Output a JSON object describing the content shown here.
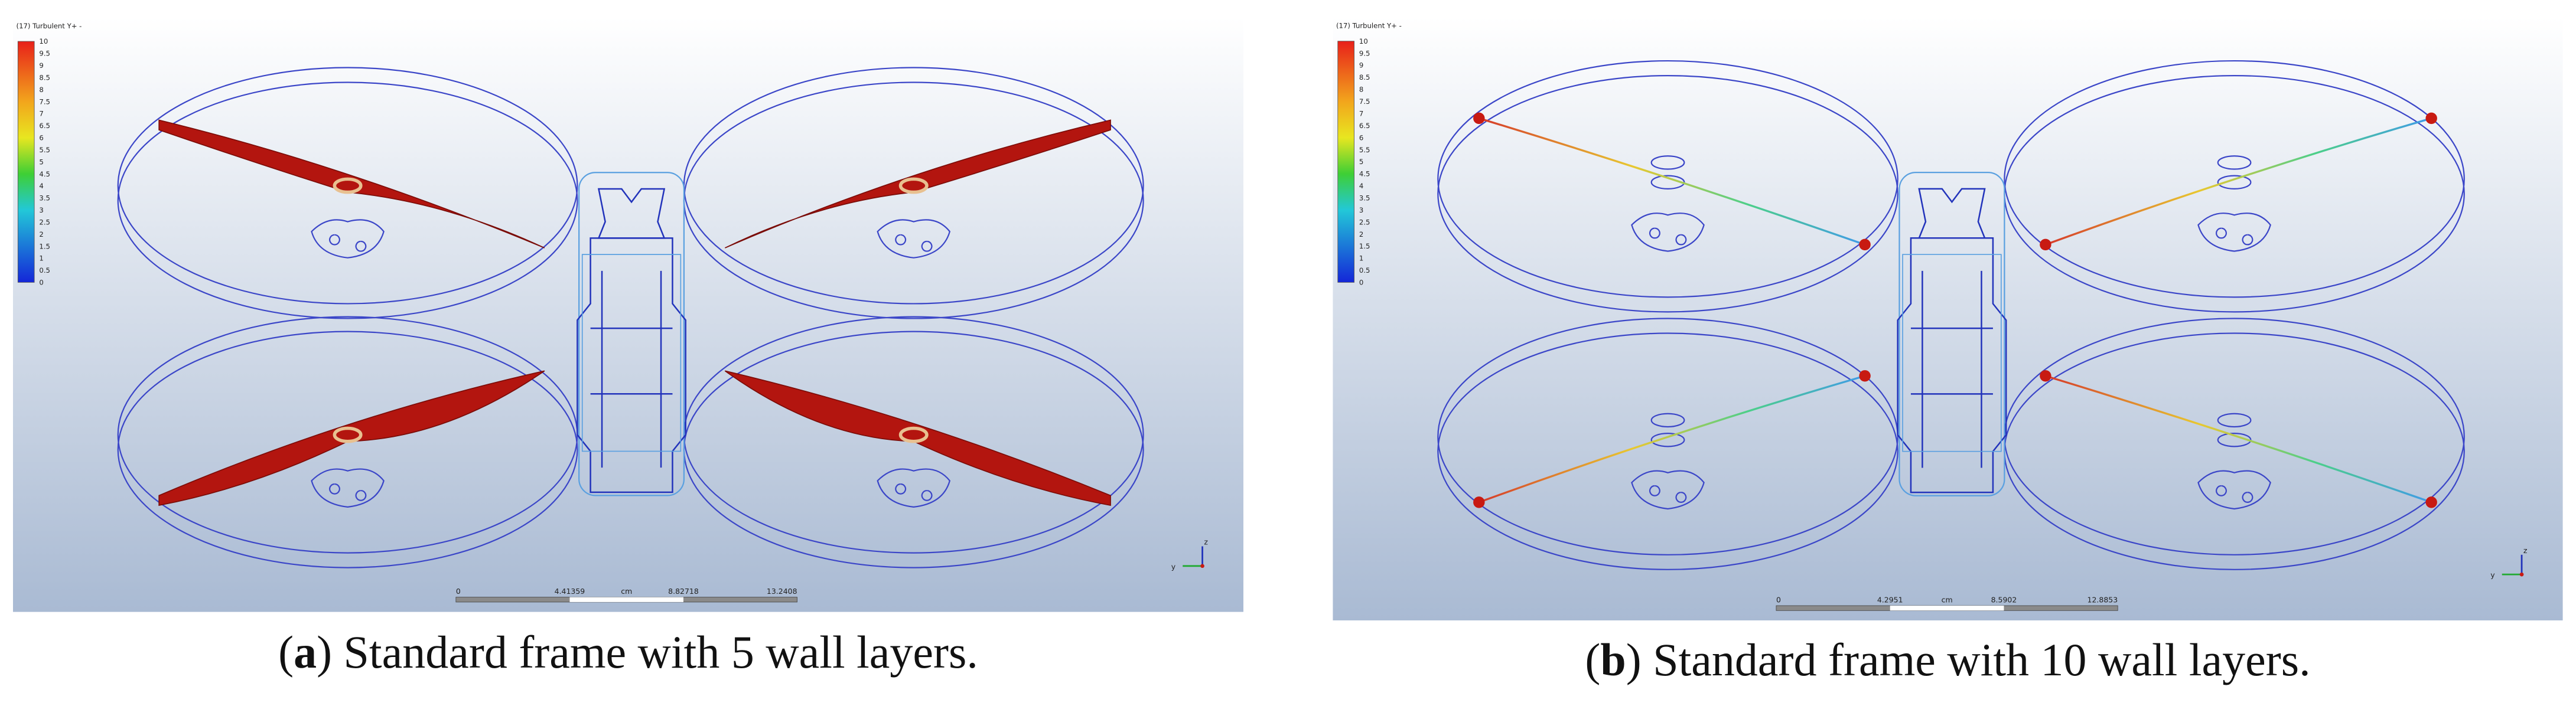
{
  "panels": [
    {
      "legend": {
        "title": "(17) Turbulent Y+ -",
        "labels": [
          "10",
          "9.5",
          "9",
          "8.5",
          "8",
          "7.5",
          "7",
          "6.5",
          "6",
          "5.5",
          "5",
          "4.5",
          "4",
          "3.5",
          "3",
          "2.5",
          "2",
          "1.5",
          "1",
          "0.5",
          "0"
        ]
      },
      "scale_bar": {
        "labels": [
          "0",
          "4.41359",
          "cm",
          "8.82718",
          "13.2408"
        ]
      },
      "triad": {
        "labels": [
          "z",
          "y"
        ]
      },
      "caption": {
        "open": "(",
        "letter": "a",
        "text": ") Standard frame with 5 wall layers."
      }
    },
    {
      "legend": {
        "title": "(17) Turbulent Y+ -",
        "labels": [
          "10",
          "9.5",
          "9",
          "8.5",
          "8",
          "7.5",
          "7",
          "6.5",
          "6",
          "5.5",
          "5",
          "4.5",
          "4",
          "3.5",
          "3",
          "2.5",
          "2",
          "1.5",
          "1",
          "0.5",
          "0"
        ]
      },
      "scale_bar": {
        "labels": [
          "0",
          "4.2951",
          "cm",
          "8.5902",
          "12.8853"
        ]
      },
      "triad": {
        "labels": [
          "z",
          "y"
        ]
      },
      "caption": {
        "open": "(",
        "letter": "b",
        "text": ") Standard frame with 10 wall layers."
      }
    }
  ]
}
